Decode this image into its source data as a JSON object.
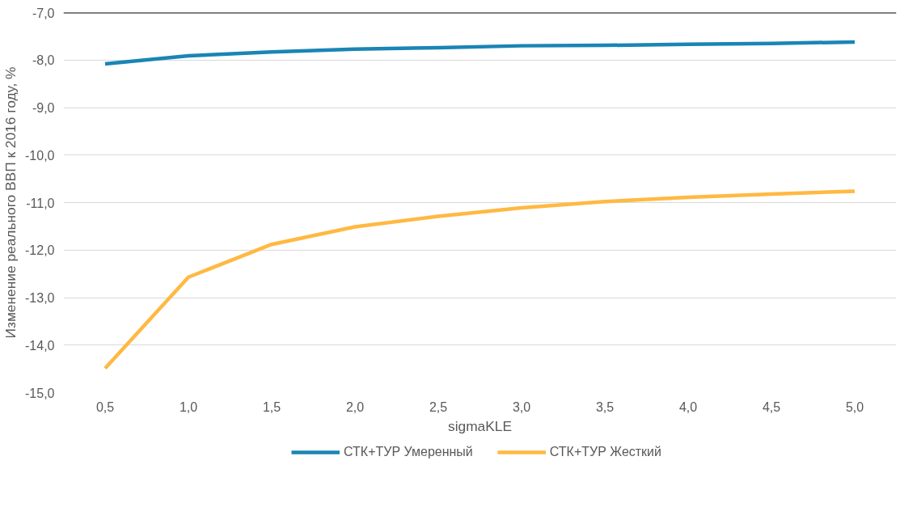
{
  "chart_data": {
    "type": "line",
    "xlabel": "sigmaKLE",
    "ylabel": "Изменение реального ВВП к 2016 году, %",
    "categories": [
      "0,5",
      "1,0",
      "1,5",
      "2,0",
      "2,5",
      "3,0",
      "3,5",
      "4,0",
      "4,5",
      "5,0"
    ],
    "series": [
      {
        "name": "СТК+ТУР Умеренный",
        "color": "#1a85b5",
        "values": [
          -8.08,
          -7.91,
          -7.83,
          -7.77,
          -7.74,
          -7.7,
          -7.69,
          -7.67,
          -7.65,
          -7.62
        ]
      },
      {
        "name": "СТК+ТУР Жесткий",
        "color": "#ffb942",
        "values": [
          -14.49,
          -12.57,
          -11.88,
          -11.51,
          -11.29,
          -11.11,
          -10.98,
          -10.89,
          -10.82,
          -10.76
        ]
      }
    ],
    "ylim": [
      -15,
      -7
    ],
    "yticks": [
      {
        "value": -15,
        "label": "-15,0"
      },
      {
        "value": -14,
        "label": "-14,0"
      },
      {
        "value": -13,
        "label": "-13,0"
      },
      {
        "value": -12,
        "label": "-12,0"
      },
      {
        "value": -11,
        "label": "-11,0"
      },
      {
        "value": -10,
        "label": "-10,0"
      },
      {
        "value": -9,
        "label": "-9,0"
      },
      {
        "value": -8,
        "label": "-8,0"
      },
      {
        "value": -7,
        "label": "-7,0"
      }
    ],
    "ref_lines": [
      {
        "axis": "y",
        "value": -7,
        "color": "#000000"
      }
    ],
    "grid": "y",
    "legend": "bottom",
    "marker": "none",
    "line_style": "solid"
  }
}
